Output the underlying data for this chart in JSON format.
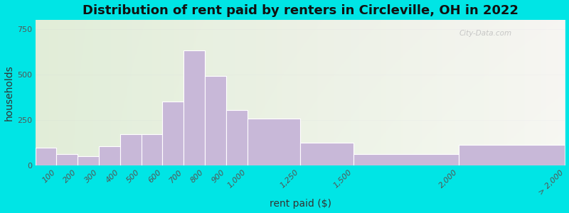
{
  "title": "Distribution of rent paid by renters in Circleville, OH in 2022",
  "xlabel": "rent paid ($)",
  "ylabel": "households",
  "bar_color": "#c8b8d8",
  "bar_edgecolor": "#ffffff",
  "bin_edges": [
    0,
    100,
    200,
    300,
    400,
    500,
    600,
    700,
    800,
    900,
    1000,
    1250,
    1500,
    2000,
    2500
  ],
  "bin_labels": [
    "100",
    "200",
    "300",
    "400",
    "500",
    "600",
    "700",
    "800",
    "900",
    "1,000",
    "1,250",
    "1,500",
    "2,000",
    "> 2,000"
  ],
  "values": [
    95,
    60,
    50,
    105,
    170,
    170,
    350,
    630,
    490,
    305,
    255,
    125,
    60,
    110
  ],
  "ylim": [
    0,
    800
  ],
  "yticks": [
    0,
    250,
    500,
    750
  ],
  "bg_color_left": "#d4e8c0",
  "bg_color_right": "#f0f0e8",
  "outer_bg": "#00e5e5",
  "title_fontsize": 13,
  "axis_label_fontsize": 10,
  "tick_fontsize": 8,
  "watermark": "City-Data.com"
}
